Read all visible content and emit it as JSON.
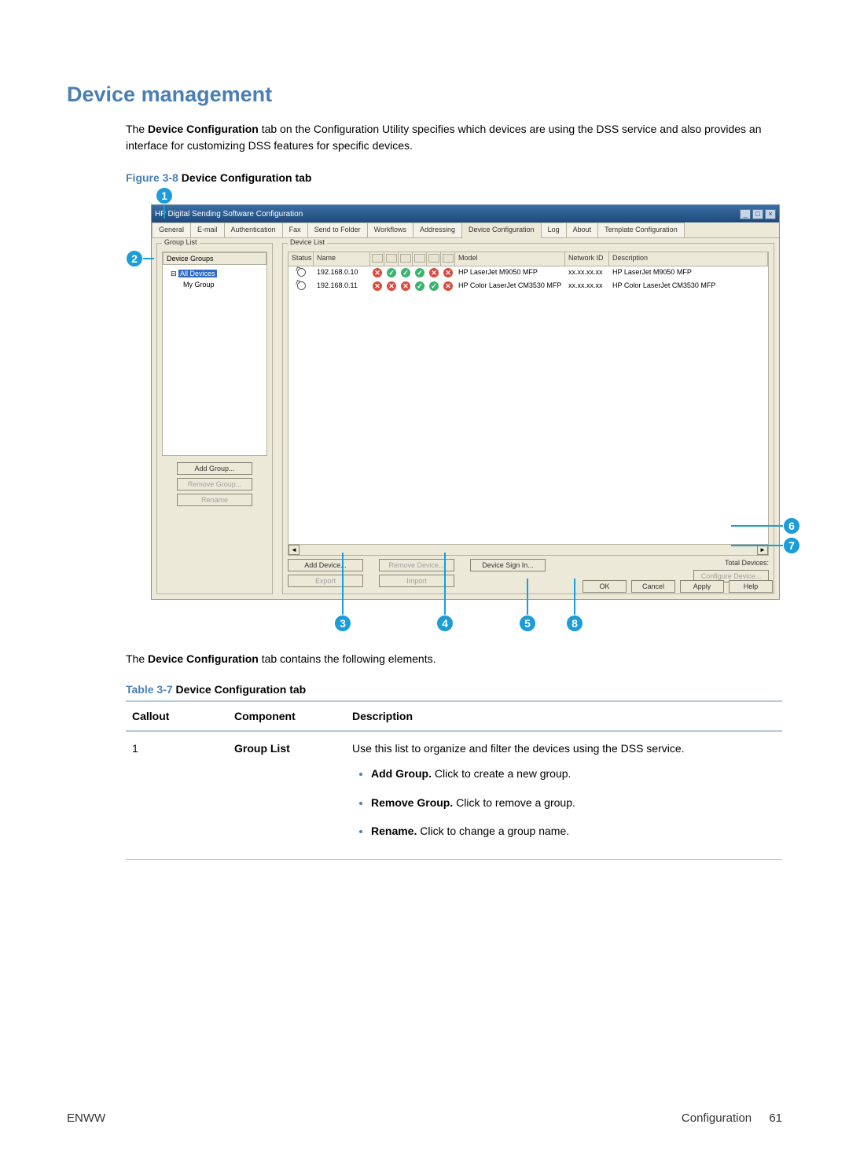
{
  "heading": "Device management",
  "intro_pre": "The ",
  "intro_bold1": "Device Configuration",
  "intro_post": " tab on the Configuration Utility specifies which devices are using the DSS service and also provides an interface for customizing DSS features for specific devices.",
  "figure_label": "Figure 3-8",
  "figure_title": " Device Configuration",
  "figure_title_suffix": " tab",
  "caption_pre": "The ",
  "caption_bold": "Device Configuration",
  "caption_post": " tab contains the following elements.",
  "table_label": "Table 3-7",
  "table_title": " Device Configuration tab",
  "table": {
    "columns": [
      "Callout",
      "Component",
      "Description"
    ],
    "row1": {
      "callout": "1",
      "component": "Group List",
      "desc_lead": "Use this list to organize and filter the devices using the DSS service.",
      "bullets": [
        {
          "bold": "Add Group.",
          "rest": " Click to create a new group."
        },
        {
          "bold": "Remove Group.",
          "rest": " Click to remove a group."
        },
        {
          "bold": "Rename.",
          "rest": " Click to change a group name."
        }
      ]
    }
  },
  "footer": {
    "left": "ENWW",
    "right_label": "Configuration",
    "page": "61"
  },
  "callouts": [
    "1",
    "2",
    "3",
    "4",
    "5",
    "6",
    "7",
    "8"
  ],
  "shot": {
    "title": "HP Digital Sending Software Configuration",
    "tabs": [
      "General",
      "E-mail",
      "Authentication",
      "Fax",
      "Send to Folder",
      "Workflows",
      "Addressing",
      "Device Configuration",
      "Log",
      "About",
      "Template Configuration"
    ],
    "active_tab_index": 7,
    "group_list_title": "Group List",
    "device_groups_hdr": "Device Groups",
    "tree_root": "All Devices",
    "tree_child": "My Group",
    "group_buttons": {
      "add": "Add Group...",
      "remove": "Remove Group...",
      "rename": "Rename"
    },
    "device_list_title": "Device List",
    "dl_columns": [
      "Status",
      "Name",
      "",
      "",
      "",
      "",
      "",
      "",
      "Model",
      "Network ID",
      "Description"
    ],
    "rows": [
      {
        "name": "192.168.0.10",
        "features": [
          "bad",
          "ok",
          "ok",
          "ok",
          "bad",
          "bad"
        ],
        "model": "HP LaserJet M9050 MFP",
        "netid": "xx.xx.xx.xx",
        "desc": "HP LaserJet M9050 MFP"
      },
      {
        "name": "192.168.0.11",
        "features": [
          "bad",
          "bad",
          "bad",
          "ok",
          "ok",
          "bad"
        ],
        "model": "HP Color LaserJet CM3530 MFP",
        "netid": "xx.xx.xx.xx",
        "desc": "HP Color LaserJet CM3530 MFP"
      }
    ],
    "dev_buttons": {
      "add": "Add Device...",
      "export": "Export",
      "remove": "Remove Device...",
      "import": "Import",
      "signin": "Device Sign In..."
    },
    "total_label": "Total Devices:",
    "configure": "Configure Device...",
    "ok_row": [
      "OK",
      "Cancel",
      "Apply",
      "Help"
    ]
  }
}
